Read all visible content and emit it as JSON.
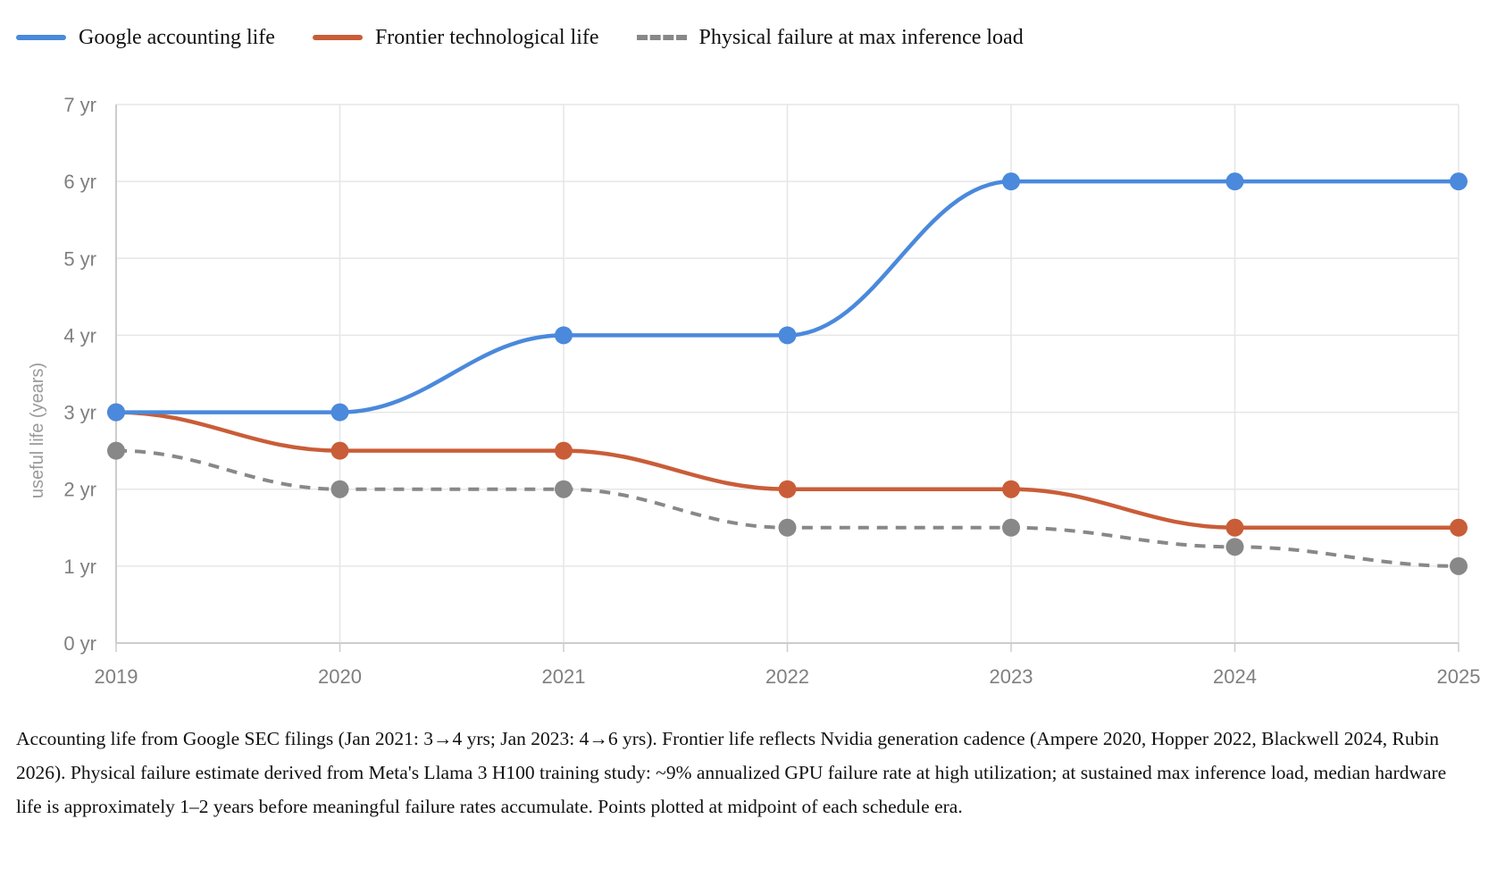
{
  "chart_data": {
    "type": "line",
    "x": [
      "2019",
      "2020",
      "2021",
      "2022",
      "2023",
      "2024",
      "2025"
    ],
    "series": [
      {
        "name": "Google accounting life",
        "color": "#4a89dc",
        "dashed": false,
        "values": [
          3,
          3,
          4,
          4,
          6,
          6,
          6
        ]
      },
      {
        "name": "Frontier technological life",
        "color": "#c95d38",
        "dashed": false,
        "values": [
          3,
          2.5,
          2.5,
          2,
          2,
          1.5,
          1.5
        ]
      },
      {
        "name": "Physical failure at max inference load",
        "color": "#888888",
        "dashed": true,
        "values": [
          2.5,
          2,
          2,
          1.5,
          1.5,
          1.25,
          1
        ]
      }
    ],
    "yticks": [
      "0 yr",
      "1 yr",
      "2 yr",
      "3 yr",
      "4 yr",
      "5 yr",
      "6 yr",
      "7 yr"
    ],
    "ylabel": "useful life (years)",
    "xlabel": "",
    "title": "",
    "ylim": [
      0,
      7
    ],
    "grid": true,
    "legend_position": "top-left"
  },
  "caption": "Accounting life from Google SEC filings (Jan 2021: 3→4 yrs; Jan 2023: 4→6 yrs). Frontier life reflects Nvidia generation cadence (Ampere 2020, Hopper 2022, Blackwell 2024, Rubin 2026). Physical failure estimate derived from Meta's Llama 3 H100 training study: ~9% annualized GPU failure rate at high utilization; at sustained max inference load, median hardware life is approximately 1–2 years before meaningful failure rates accumulate. Points plotted at midpoint of each schedule era."
}
